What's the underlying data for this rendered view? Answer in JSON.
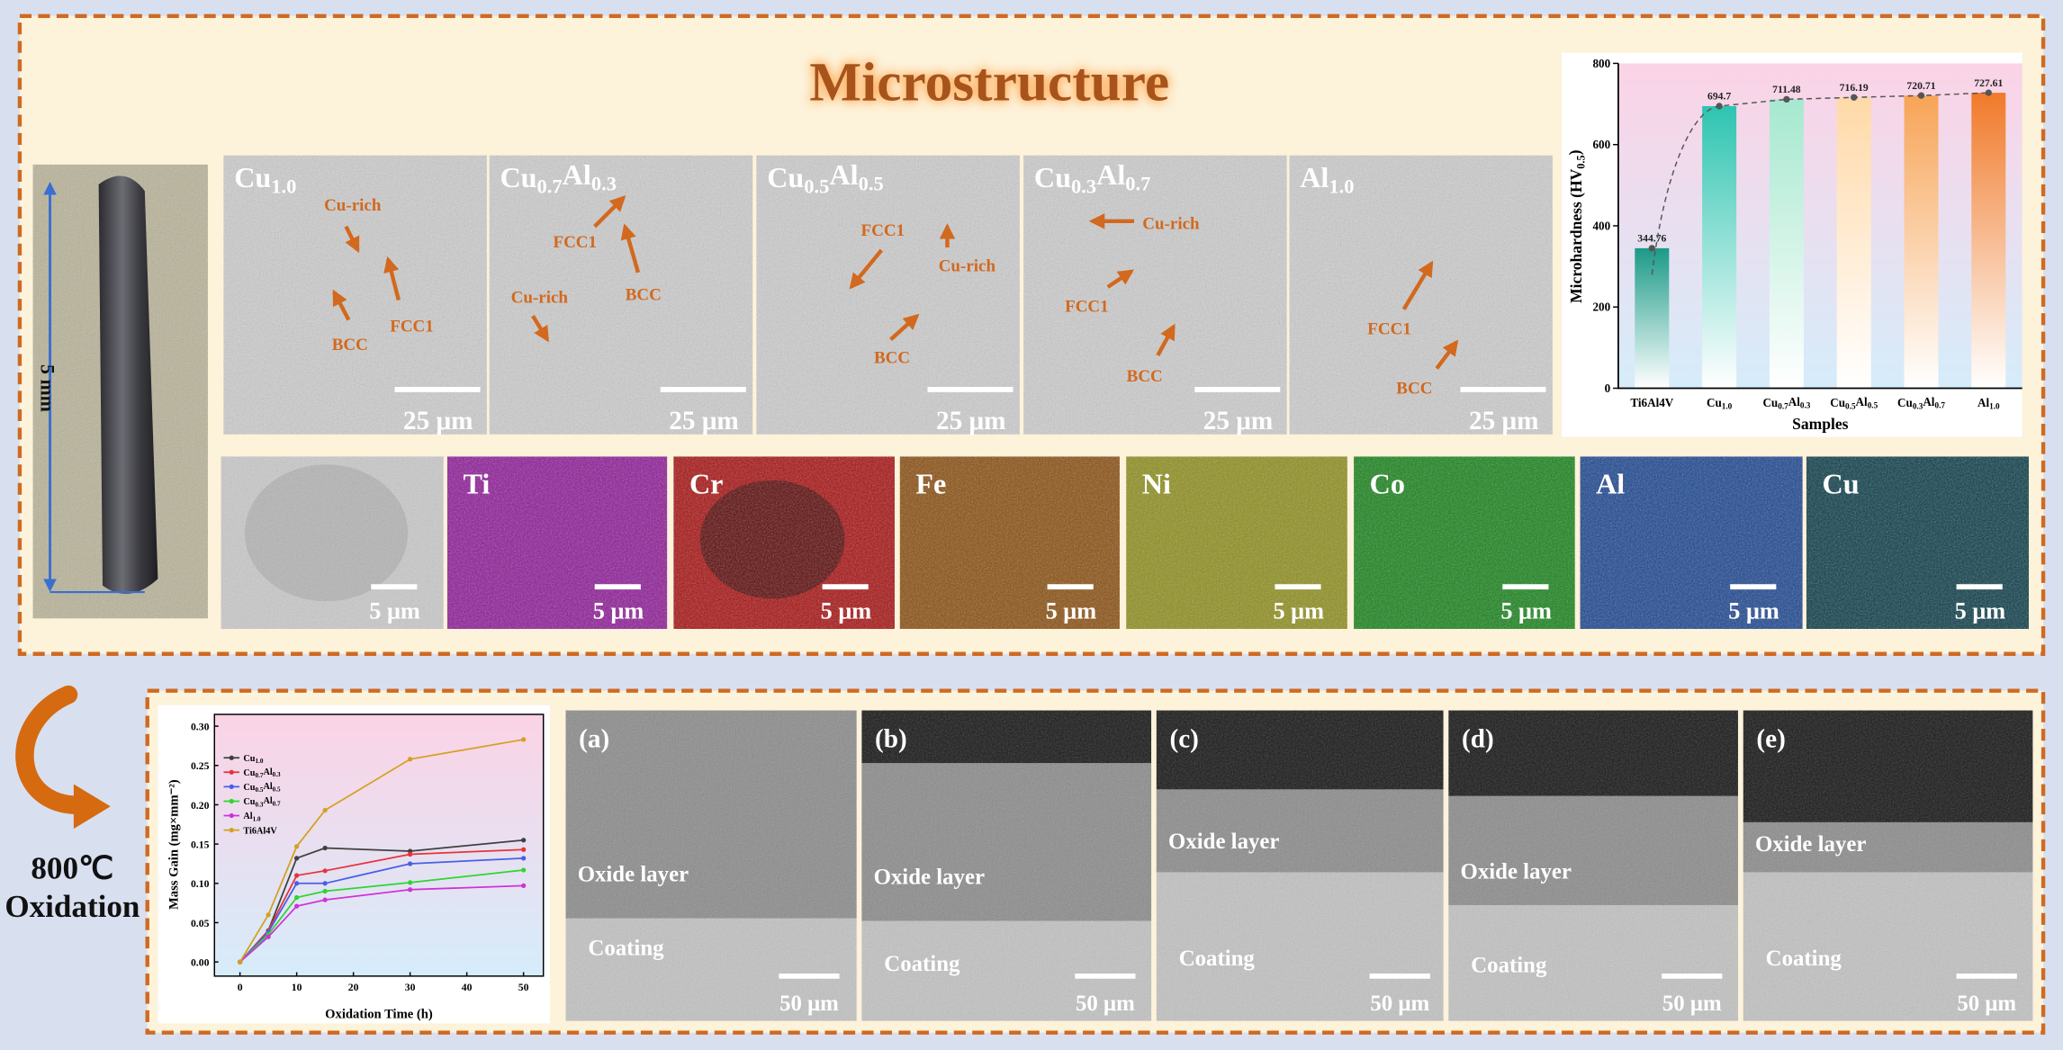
{
  "title": "Microstructure",
  "sample_photo": {
    "scale": "5 mm"
  },
  "sem_panels": [
    {
      "label": "Cu1.0",
      "annotations": [
        "Cu-rich",
        "FCC1",
        "BCC"
      ],
      "scale": "25 μm"
    },
    {
      "label": "Cu0.7Al0.3",
      "annotations": [
        "FCC1",
        "BCC",
        "Cu-rich"
      ],
      "scale": "25 μm"
    },
    {
      "label": "Cu0.5Al0.5",
      "annotations": [
        "FCC1",
        "Cu-rich",
        "BCC"
      ],
      "scale": "25 μm"
    },
    {
      "label": "Cu0.3Al0.7",
      "annotations": [
        "Cu-rich",
        "FCC1",
        "BCC"
      ],
      "scale": "25 μm"
    },
    {
      "label": "Al1.0",
      "annotations": [
        "FCC1",
        "BCC"
      ],
      "scale": "25 μm"
    }
  ],
  "eds_panels": [
    {
      "scale": "5 μm"
    },
    {
      "element": "Ti",
      "scale": "5 μm"
    },
    {
      "element": "Cr",
      "scale": "5 μm"
    },
    {
      "element": "Fe",
      "scale": "5 μm"
    },
    {
      "element": "Ni",
      "scale": "5 μm"
    },
    {
      "element": "Co",
      "scale": "5 μm"
    },
    {
      "element": "Al",
      "scale": "5 μm"
    },
    {
      "element": "Cu",
      "scale": "5 μm"
    }
  ],
  "oxidation": {
    "temperature": "800℃",
    "label": "Oxidation"
  },
  "cross_sections": [
    {
      "label": "(a)",
      "oxide": "Oxide layer",
      "coating": "Coating",
      "scale": "50 μm"
    },
    {
      "label": "(b)",
      "oxide": "Oxide layer",
      "coating": "Coating",
      "scale": "50 μm"
    },
    {
      "label": "(c)",
      "oxide": "Oxide layer",
      "coating": "Coating",
      "scale": "50 μm"
    },
    {
      "label": "(d)",
      "oxide": "Oxide layer",
      "coating": "Coating",
      "scale": "50 μm"
    },
    {
      "label": "(e)",
      "oxide": "Oxide layer",
      "coating": "Coating",
      "scale": "50 μm"
    }
  ],
  "chart_data": [
    {
      "type": "bar",
      "x_label": "Samples",
      "y_label": "Microhardness (HV0.5)",
      "categories": [
        "Ti6Al4V",
        "Cu1.0",
        "Cu0.7Al0.3",
        "Cu0.5Al0.5",
        "Cu0.3Al0.7",
        "Al1.0"
      ],
      "values": [
        344.76,
        694.7,
        711.48,
        716.19,
        720.71,
        727.61
      ],
      "colors": [
        "#1b9a88",
        "#2ec4b0",
        "#a6e8cf",
        "#ffd9a8",
        "#f7a457",
        "#f07a2a"
      ],
      "ylim": [
        0,
        800
      ],
      "yticks": [
        0,
        200,
        400,
        600,
        800
      ]
    },
    {
      "type": "line",
      "x_label": "Oxidation Time (h)",
      "y_label": "Mass Gain (mg×mm⁻²)",
      "x": [
        0,
        5,
        10,
        15,
        30,
        50
      ],
      "series": [
        {
          "name": "Cu1.0",
          "color": "#404040",
          "values": [
            0,
            0.04,
            0.132,
            0.145,
            0.141,
            0.155
          ]
        },
        {
          "name": "Cu0.7Al0.3",
          "color": "#e8323c",
          "values": [
            0,
            0.04,
            0.11,
            0.116,
            0.137,
            0.143
          ]
        },
        {
          "name": "Cu0.5Al0.5",
          "color": "#4a5ee8",
          "values": [
            0,
            0.038,
            0.1,
            0.1,
            0.125,
            0.132
          ]
        },
        {
          "name": "Cu0.3Al0.7",
          "color": "#2ed62e",
          "values": [
            0,
            0.035,
            0.082,
            0.09,
            0.101,
            0.117
          ]
        },
        {
          "name": "Al1.0",
          "color": "#d032d8",
          "values": [
            0,
            0.032,
            0.071,
            0.079,
            0.092,
            0.097
          ]
        },
        {
          "name": "Ti6Al4V",
          "color": "#d4a020",
          "values": [
            0,
            0.06,
            0.147,
            0.193,
            0.258,
            0.283
          ]
        }
      ],
      "xlim": [
        -4.5,
        53.5
      ],
      "xticks": [
        0,
        10,
        20,
        30,
        40,
        50
      ],
      "ylim": [
        -0.018,
        0.315
      ],
      "yticks": [
        {
          "value": 0,
          "label": "0.00"
        },
        {
          "value": 0.05,
          "label": "0.05"
        },
        {
          "value": 0.1,
          "label": "0.10"
        },
        {
          "value": 0.15,
          "label": "0.15"
        },
        {
          "value": 0.2,
          "label": "0.20"
        },
        {
          "value": 0.25,
          "label": "0.25"
        },
        {
          "value": 0.3,
          "label": "0.30"
        }
      ]
    }
  ]
}
